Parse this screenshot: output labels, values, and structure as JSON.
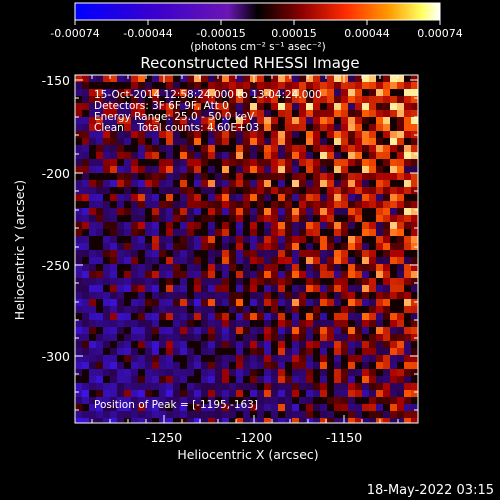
{
  "title": "Reconstructed RHESSI Image",
  "colorbar": {
    "tick_labels": [
      "-0.00074",
      "-0.00044",
      "-0.00015",
      "0.00015",
      "0.00044",
      "0.00074"
    ],
    "units_label": "(photons cm⁻² s⁻¹ asec⁻²)"
  },
  "image_info": {
    "time_range": "15-Oct-2014 12:58:24.000 to 13:04:24.000",
    "detectors": "Detectors: 3F 6F 9F, Att 0",
    "energy_range": "Energy Range: 25.0 - 50.0 keV",
    "clean_counts": "Clean    Total counts: 4.60E+03",
    "peak_position": "Position of Peak = [-1195,-163]"
  },
  "axes": {
    "xlabel": "Heliocentric X (arcsec)",
    "ylabel": "Heliocentric Y (arcsec)",
    "x_ticks": [
      "-1250",
      "-1200",
      "-1150"
    ],
    "y_ticks": [
      "-150",
      "-200",
      "-250",
      "-300"
    ]
  },
  "footer": {
    "date": "18-May-2022 03:15"
  },
  "colors": {
    "background": "#000000",
    "foreground": "#ffffff"
  }
}
